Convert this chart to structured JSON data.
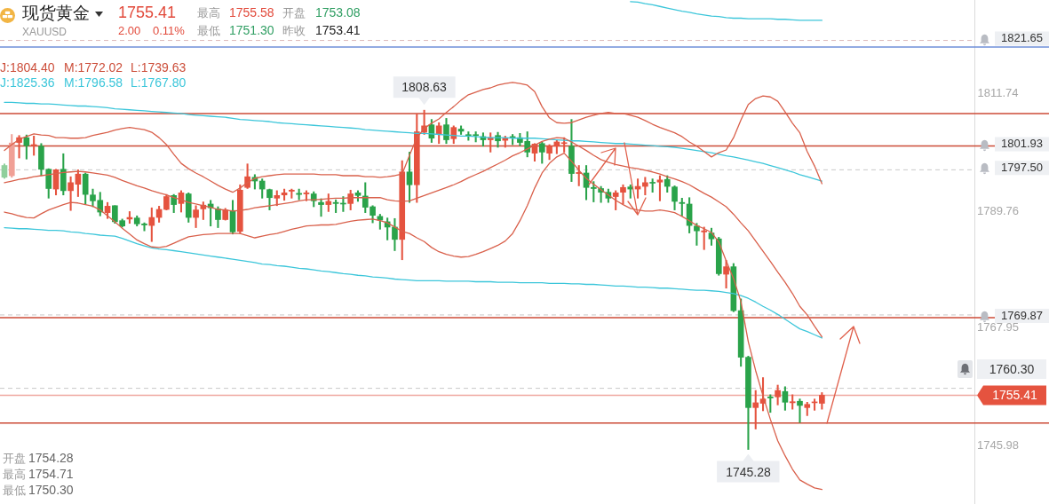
{
  "chart_data": {
    "type": "candlestick",
    "title": "现货黄金",
    "subtitle": "XAUUSD",
    "categories": [
      null,
      null,
      null,
      null,
      null,
      null,
      null,
      null,
      null,
      null,
      null,
      null,
      null,
      null,
      null,
      null,
      null,
      null,
      null,
      null,
      null,
      null,
      null,
      null,
      null,
      null,
      null,
      null,
      null,
      null,
      null,
      null,
      null,
      null,
      null,
      null,
      null,
      null,
      null,
      null,
      null,
      null,
      null,
      null,
      null,
      null,
      null,
      null,
      null,
      null,
      null,
      null,
      null,
      null,
      null,
      null,
      null,
      null,
      null,
      null,
      null,
      null,
      null,
      null,
      null,
      null,
      null,
      null,
      null,
      null,
      null,
      null,
      null,
      null,
      null,
      null,
      null,
      null,
      null,
      null,
      null,
      null,
      null,
      null,
      null,
      null,
      null,
      null,
      null,
      null,
      null,
      null,
      null,
      null,
      null,
      null,
      null,
      null,
      null,
      null,
      null,
      null,
      null,
      null,
      null,
      null,
      null,
      null,
      null,
      null,
      null,
      null
    ],
    "ohlc": [
      [
        1798.3,
        1798.6,
        1795.9,
        1796.1
      ],
      [
        1796.4,
        1804.1,
        1796.1,
        1802.5
      ],
      [
        1802.6,
        1803.9,
        1799.7,
        1803.5
      ],
      [
        1803.5,
        1804.0,
        1799.5,
        1802.0
      ],
      [
        1802.0,
        1803.8,
        1800.2,
        1802.2
      ],
      [
        1801.9,
        1802.4,
        1796.4,
        1797.6
      ],
      [
        1797.6,
        1797.7,
        1792.2,
        1794.0
      ],
      [
        1793.9,
        1797.6,
        1792.8,
        1797.5
      ],
      [
        1797.6,
        1800.5,
        1792.8,
        1793.6
      ],
      [
        1793.6,
        1796.2,
        1789.9,
        1795.1
      ],
      [
        1794.8,
        1797.5,
        1792.5,
        1796.7
      ],
      [
        1796.7,
        1796.9,
        1791.1,
        1792.9
      ],
      [
        1792.8,
        1793.9,
        1790.6,
        1791.7
      ],
      [
        1791.8,
        1793.3,
        1788.9,
        1789.6
      ],
      [
        1789.5,
        1791.4,
        1788.4,
        1790.7
      ],
      [
        1790.8,
        1790.8,
        1787.5,
        1787.8
      ],
      [
        1788.0,
        1788.3,
        1786.8,
        1787.0
      ],
      [
        1788.3,
        1789.7,
        1787.5,
        1788.6
      ],
      [
        1788.5,
        1788.9,
        1787.0,
        1787.4
      ],
      [
        1787.4,
        1787.6,
        1786.1,
        1787.2
      ],
      [
        1787.1,
        1790.4,
        1784.1,
        1788.6
      ],
      [
        1788.6,
        1790.7,
        1787.7,
        1790.1
      ],
      [
        1790.1,
        1792.9,
        1790.0,
        1792.5
      ],
      [
        1792.7,
        1792.9,
        1789.5,
        1791.0
      ],
      [
        1791.2,
        1793.6,
        1789.6,
        1793.2
      ],
      [
        1793.0,
        1793.2,
        1787.7,
        1788.6
      ],
      [
        1788.6,
        1790.8,
        1786.7,
        1790.0
      ],
      [
        1790.2,
        1791.5,
        1788.2,
        1790.9
      ],
      [
        1791.1,
        1791.8,
        1787.0,
        1790.4
      ],
      [
        1790.2,
        1790.6,
        1786.7,
        1788.2
      ],
      [
        1788.2,
        1790.3,
        1788.1,
        1790.0
      ],
      [
        1789.9,
        1791.8,
        1785.5,
        1785.9
      ],
      [
        1786.0,
        1794.7,
        1785.6,
        1793.7
      ],
      [
        1794.2,
        1798.6,
        1794.0,
        1796.2
      ],
      [
        1796.1,
        1796.6,
        1793.9,
        1795.4
      ],
      [
        1795.4,
        1795.8,
        1792.2,
        1793.9
      ],
      [
        1793.8,
        1793.9,
        1790.0,
        1792.3
      ],
      [
        1792.2,
        1793.6,
        1790.8,
        1792.7
      ],
      [
        1792.8,
        1793.9,
        1791.8,
        1793.2
      ],
      [
        1793.5,
        1793.9,
        1792.2,
        1793.7
      ],
      [
        1793.1,
        1793.9,
        1791.9,
        1792.9
      ],
      [
        1793.0,
        1793.6,
        1791.7,
        1793.2
      ],
      [
        1793.0,
        1793.4,
        1790.6,
        1791.7
      ],
      [
        1791.4,
        1792.1,
        1788.8,
        1791.0
      ],
      [
        1791.0,
        1793.0,
        1789.7,
        1791.6
      ],
      [
        1791.4,
        1791.9,
        1789.5,
        1791.2
      ],
      [
        1791.2,
        1792.5,
        1789.7,
        1791.1
      ],
      [
        1791.2,
        1793.7,
        1790.0,
        1793.0
      ],
      [
        1793.2,
        1793.6,
        1791.6,
        1792.7
      ],
      [
        1792.6,
        1795.1,
        1789.5,
        1790.5
      ],
      [
        1790.6,
        1790.8,
        1787.6,
        1789.0
      ],
      [
        1788.8,
        1789.2,
        1786.4,
        1788.1
      ],
      [
        1787.8,
        1788.5,
        1784.4,
        1786.8
      ],
      [
        1786.8,
        1788.4,
        1782.4,
        1784.5
      ],
      [
        1784.5,
        1799.2,
        1780.7,
        1797.1
      ],
      [
        1797.1,
        1800.8,
        1791.4,
        1794.7
      ],
      [
        1794.7,
        1807.9,
        1791.4,
        1804.6
      ],
      [
        1804.5,
        1808.63,
        1804.1,
        1805.7
      ],
      [
        1805.9,
        1806.9,
        1802.6,
        1803.4
      ],
      [
        1804.1,
        1806.3,
        1802.4,
        1805.7
      ],
      [
        1805.9,
        1807.1,
        1802.4,
        1803.1
      ],
      [
        1803.3,
        1805.7,
        1802.4,
        1805.4
      ],
      [
        1805.1,
        1805.7,
        1804.1,
        1804.7
      ],
      [
        1804.0,
        1804.6,
        1803.0,
        1803.9
      ],
      [
        1804.0,
        1804.6,
        1802.7,
        1803.9
      ],
      [
        1803.7,
        1804.4,
        1801.9,
        1803.1
      ],
      [
        1803.1,
        1804.4,
        1800.8,
        1803.5
      ],
      [
        1803.9,
        1804.5,
        1801.7,
        1802.9
      ],
      [
        1803.0,
        1803.8,
        1801.7,
        1803.4
      ],
      [
        1803.7,
        1804.1,
        1802.2,
        1803.5
      ],
      [
        1803.5,
        1804.3,
        1802.0,
        1802.6
      ],
      [
        1802.8,
        1804.6,
        1799.9,
        1800.8
      ],
      [
        1800.6,
        1802.4,
        1799.1,
        1802.3
      ],
      [
        1802.4,
        1802.7,
        1798.7,
        1800.8
      ],
      [
        1800.6,
        1802.2,
        1799.4,
        1801.9
      ],
      [
        1801.9,
        1803.1,
        1800.5,
        1802.7
      ],
      [
        1802.4,
        1803.5,
        1800.8,
        1802.5
      ],
      [
        1801.9,
        1806.9,
        1795.3,
        1796.8
      ],
      [
        1796.8,
        1798.3,
        1794.5,
        1797.0
      ],
      [
        1796.9,
        1798.3,
        1791.9,
        1794.2
      ],
      [
        1794.2,
        1795.3,
        1791.5,
        1794.0
      ],
      [
        1794.0,
        1794.4,
        1791.4,
        1793.3
      ],
      [
        1793.3,
        1793.9,
        1791.4,
        1792.2
      ],
      [
        1792.5,
        1793.6,
        1790.0,
        1793.2
      ],
      [
        1793.3,
        1794.7,
        1791.1,
        1794.2
      ],
      [
        1794.3,
        1794.7,
        1792.2,
        1793.9
      ],
      [
        1793.9,
        1795.8,
        1792.2,
        1794.4
      ],
      [
        1794.4,
        1796.1,
        1792.8,
        1795.1
      ],
      [
        1795.1,
        1795.8,
        1793.3,
        1795.0
      ],
      [
        1795.2,
        1796.4,
        1791.7,
        1795.6
      ],
      [
        1795.7,
        1796.4,
        1793.3,
        1794.4
      ],
      [
        1794.3,
        1794.5,
        1790.0,
        1791.6
      ],
      [
        1791.4,
        1792.2,
        1788.9,
        1791.2
      ],
      [
        1791.1,
        1792.3,
        1785.7,
        1787.1
      ],
      [
        1787.0,
        1787.5,
        1783.4,
        1786.1
      ],
      [
        1785.9,
        1786.8,
        1782.6,
        1786.1
      ],
      [
        1785.7,
        1786.6,
        1783.4,
        1784.6
      ],
      [
        1784.6,
        1784.9,
        1777.8,
        1778.1
      ],
      [
        1778.0,
        1780.6,
        1775.4,
        1779.4
      ],
      [
        1779.4,
        1780.0,
        1771.0,
        1771.2
      ],
      [
        1771.2,
        1773.4,
        1760.8,
        1762.5
      ],
      [
        1762.5,
        1762.7,
        1745.28,
        1753.1
      ],
      [
        1753.1,
        1756.3,
        1749.1,
        1754.0
      ],
      [
        1753.9,
        1758.7,
        1752.5,
        1754.7
      ],
      [
        1755.1,
        1755.5,
        1752.2,
        1754.9
      ],
      [
        1755.1,
        1757.3,
        1753.6,
        1756.3
      ],
      [
        1756.1,
        1757.0,
        1752.6,
        1754.1
      ],
      [
        1754.0,
        1755.5,
        1752.8,
        1754.2
      ],
      [
        1754.28,
        1754.71,
        1750.3,
        1753.5
      ],
      [
        1753.1,
        1754.1,
        1751.6,
        1753.7
      ],
      [
        1754.0,
        1754.7,
        1752.6,
        1754.1
      ],
      [
        1753.9,
        1755.9,
        1752.8,
        1755.41
      ]
    ],
    "colors": [
      "#8fcf9c",
      "#f0a096",
      "#e5533f",
      "#2aa34a",
      "#e5533f",
      "#2aa34a",
      "#2aa34a",
      "#e5533f",
      "#2aa34a",
      "#e5533f",
      "#e5533f",
      "#2aa34a",
      "#2aa34a",
      "#2aa34a",
      "#e5533f",
      "#2aa34a",
      "#2aa34a",
      "#e5533f",
      "#2aa34a",
      "#2aa34a",
      "#e5533f",
      "#e5533f",
      "#e5533f",
      "#2aa34a",
      "#e5533f",
      "#2aa34a",
      "#e5533f",
      "#e5533f",
      "#2aa34a",
      "#2aa34a",
      "#e5533f",
      "#2aa34a",
      "#e5533f",
      "#e5533f",
      "#2aa34a",
      "#2aa34a",
      "#2aa34a",
      "#e5533f",
      "#e5533f",
      "#e5533f",
      "#2aa34a",
      "#e5533f",
      "#2aa34a",
      "#2aa34a",
      "#e5533f",
      "#2aa34a",
      "#2aa34a",
      "#e5533f",
      "#2aa34a",
      "#2aa34a",
      "#2aa34a",
      "#2aa34a",
      "#2aa34a",
      "#2aa34a",
      "#e5533f",
      "#2aa34a",
      "#e5533f",
      "#e5533f",
      "#2aa34a",
      "#e5533f",
      "#2aa34a",
      "#e5533f",
      "#2aa34a",
      "#2aa34a",
      "#2aa34a",
      "#2aa34a",
      "#e5533f",
      "#2aa34a",
      "#e5533f",
      "#2aa34a",
      "#2aa34a",
      "#2aa34a",
      "#e5533f",
      "#2aa34a",
      "#e5533f",
      "#e5533f",
      "#e5533f",
      "#2aa34a",
      "#e5533f",
      "#2aa34a",
      "#2aa34a",
      "#2aa34a",
      "#2aa34a",
      "#e5533f",
      "#e5533f",
      "#2aa34a",
      "#e5533f",
      "#e5533f",
      "#2aa34a",
      "#e5533f",
      "#2aa34a",
      "#2aa34a",
      "#2aa34a",
      "#2aa34a",
      "#2aa34a",
      "#e5533f",
      "#2aa34a",
      "#2aa34a",
      "#e5533f",
      "#2aa34a",
      "#2aa34a",
      "#2aa34a",
      "#e5533f",
      "#e5533f",
      "#2aa34a",
      "#e5533f",
      "#2aa34a",
      "#e5533f",
      "#2aa34a",
      "#e5533f",
      "#e5533f",
      "#e5533f"
    ],
    "series": [
      {
        "type": "line",
        "color": "#d9604b",
        "values": [
          1801.1,
          1802.2,
          1803.2,
          1803.7,
          1804.2,
          1804.0,
          1803.9,
          1803.5,
          1803.5,
          1803.4,
          1803.4,
          1803.5,
          1803.9,
          1804.2,
          1804.5,
          1804.9,
          1805.2,
          1805.4,
          1805.2,
          1805.0,
          1804.5,
          1803.5,
          1802.2,
          1800.4,
          1798.7,
          1797.7,
          1796.9,
          1796.2,
          1795.4,
          1794.6,
          1793.9,
          1793.3,
          1794.1,
          1795.1,
          1795.9,
          1796.2,
          1796.4,
          1796.6,
          1796.7,
          1796.7,
          1796.7,
          1796.7,
          1796.7,
          1796.6,
          1796.6,
          1796.6,
          1796.4,
          1796.4,
          1796.4,
          1796.2,
          1796.2,
          1796.1,
          1796.2,
          1796.4,
          1796.7,
          1800.2,
          1803.5,
          1805.2,
          1806.2,
          1807.0,
          1808.2,
          1809.3,
          1810.5,
          1811.5,
          1812.0,
          1812.5,
          1812.8,
          1813.3,
          1813.6,
          1813.8,
          1813.6,
          1813.3,
          1812.1,
          1809.3,
          1807.2,
          1806.3,
          1806.2,
          1806.3,
          1806.8,
          1807.3,
          1807.7,
          1808.0,
          1808.2,
          1808.0,
          1808.0,
          1807.7,
          1807.3,
          1806.7,
          1806.0,
          1805.4,
          1804.9,
          1804.4,
          1803.7,
          1802.7,
          1801.9,
          1800.9,
          1799.9,
          1800.7,
          1801.2,
          1803.5,
          1806.8,
          1809.7,
          1810.8,
          1811.3,
          1811.1,
          1810.3,
          1808.3,
          1806.2,
          1804.4,
          1800.9,
          1798.2,
          1794.9
        ]
      },
      {
        "type": "line",
        "color": "#d9604b",
        "values": [
          1795.1,
          1795.4,
          1795.7,
          1795.9,
          1796.2,
          1796.4,
          1796.6,
          1796.8,
          1797.0,
          1797.1,
          1797.2,
          1797.1,
          1796.9,
          1796.7,
          1796.5,
          1796.1,
          1795.5,
          1795.0,
          1794.5,
          1794.1,
          1793.6,
          1793.2,
          1792.8,
          1792.3,
          1791.9,
          1791.4,
          1791.1,
          1790.8,
          1790.5,
          1790.1,
          1790.0,
          1789.8,
          1789.9,
          1790.1,
          1790.4,
          1790.6,
          1790.8,
          1791.0,
          1791.2,
          1791.4,
          1791.7,
          1791.9,
          1791.9,
          1792.0,
          1792.1,
          1792.2,
          1792.2,
          1792.3,
          1792.3,
          1792.3,
          1792.3,
          1792.3,
          1791.9,
          1791.7,
          1791.6,
          1791.7,
          1792.2,
          1792.7,
          1793.2,
          1793.7,
          1794.2,
          1794.7,
          1795.3,
          1796.0,
          1796.6,
          1797.2,
          1797.9,
          1798.6,
          1799.3,
          1800.1,
          1800.7,
          1801.4,
          1802.1,
          1802.8,
          1803.2,
          1803.5,
          1803.4,
          1802.7,
          1801.9,
          1801.1,
          1800.2,
          1799.4,
          1798.9,
          1798.5,
          1798.2,
          1797.9,
          1797.7,
          1797.4,
          1797.1,
          1796.7,
          1796.2,
          1795.8,
          1795.3,
          1794.7,
          1793.9,
          1793.1,
          1792.4,
          1791.5,
          1790.6,
          1789.2,
          1787.6,
          1786.1,
          1784.2,
          1782.3,
          1780.4,
          1778.4,
          1776.5,
          1774.4,
          1772.0,
          1770.4,
          1768.3,
          1766.3
        ]
      },
      {
        "type": "line",
        "color": "#d9604b",
        "values": [
          1789.6,
          1789.3,
          1788.9,
          1788.6,
          1788.5,
          1789.3,
          1790.0,
          1790.5,
          1791.0,
          1791.4,
          1791.3,
          1791.0,
          1790.7,
          1790.0,
          1788.9,
          1787.8,
          1786.6,
          1785.5,
          1784.4,
          1783.7,
          1783.1,
          1783.0,
          1783.2,
          1783.8,
          1784.4,
          1785.0,
          1785.2,
          1785.4,
          1785.5,
          1785.6,
          1785.6,
          1785.6,
          1785.6,
          1785.2,
          1784.8,
          1785.1,
          1785.4,
          1785.6,
          1786.0,
          1786.4,
          1786.7,
          1787.0,
          1787.1,
          1787.2,
          1787.2,
          1787.3,
          1787.6,
          1787.9,
          1788.1,
          1788.2,
          1788.3,
          1788.0,
          1787.6,
          1786.8,
          1786.0,
          1785.6,
          1784.8,
          1784.1,
          1783.0,
          1782.2,
          1781.7,
          1781.4,
          1781.2,
          1781.3,
          1781.7,
          1782.2,
          1782.8,
          1783.4,
          1784.2,
          1785.6,
          1788.0,
          1790.8,
          1794.1,
          1796.9,
          1798.7,
          1799.9,
          1800.6,
          1799.1,
          1797.4,
          1795.9,
          1794.8,
          1793.8,
          1792.8,
          1791.8,
          1791.0,
          1790.3,
          1790.0,
          1789.8,
          1789.8,
          1790.0,
          1789.8,
          1789.5,
          1788.8,
          1788.0,
          1787.1,
          1786.5,
          1785.8,
          1784.0,
          1780.5,
          1777.2,
          1772.9,
          1765.4,
          1760.0,
          1755.3,
          1750.9,
          1746.9,
          1744.1,
          1741.6,
          1739.6,
          1738.8,
          1738.1,
          1737.8
        ]
      },
      {
        "type": "line",
        "color": "#3cc6da",
        "values": [
          null,
          null,
          null,
          null,
          null,
          null,
          null,
          null,
          null,
          null,
          null,
          null,
          null,
          null,
          null,
          null,
          null,
          null,
          null,
          null,
          null,
          null,
          null,
          null,
          null,
          null,
          null,
          null,
          null,
          null,
          null,
          null,
          null,
          null,
          null,
          null,
          null,
          null,
          null,
          null,
          null,
          null,
          null,
          null,
          null,
          null,
          null,
          null,
          null,
          null,
          null,
          null,
          null,
          null,
          null,
          null,
          null,
          null,
          null,
          null,
          null,
          null,
          null,
          null,
          null,
          null,
          null,
          null,
          null,
          null,
          null,
          null,
          null,
          null,
          null,
          null,
          null,
          null,
          null,
          null,
          null,
          null,
          null,
          null,
          null,
          1828.9,
          1828.8,
          1828.5,
          1828.3,
          1828.0,
          1827.7,
          1827.4,
          1827.1,
          1826.9,
          1826.6,
          1826.4,
          1826.2,
          1826.1,
          1825.9,
          1825.8,
          1825.8,
          1825.7,
          1825.7,
          1825.7,
          1825.7,
          1825.6,
          1825.6,
          1825.5,
          1825.4,
          1825.4,
          1825.4,
          1825.4
        ]
      },
      {
        "type": "line",
        "color": "#3cc6da",
        "values": [
          1810.1,
          1810.1,
          1810.0,
          1809.9,
          1809.9,
          1809.8,
          1809.8,
          1809.7,
          1809.6,
          1809.5,
          1809.4,
          1809.4,
          1809.3,
          1809.2,
          1809.1,
          1808.9,
          1808.8,
          1808.7,
          1808.6,
          1808.5,
          1808.4,
          1808.3,
          1808.2,
          1808.1,
          1808.0,
          1807.8,
          1807.7,
          1807.6,
          1807.5,
          1807.4,
          1807.3,
          1807.1,
          1806.9,
          1806.8,
          1806.7,
          1806.6,
          1806.5,
          1806.3,
          1806.2,
          1806.1,
          1806.0,
          1805.9,
          1805.8,
          1805.7,
          1805.6,
          1805.5,
          1805.4,
          1805.3,
          1805.2,
          1805.0,
          1804.9,
          1804.8,
          1804.7,
          1804.6,
          1804.5,
          1804.4,
          1804.3,
          1804.3,
          1804.2,
          1804.1,
          1804.0,
          1803.9,
          1803.8,
          1803.8,
          1803.7,
          1803.6,
          1803.5,
          1803.5,
          1803.5,
          1803.4,
          1803.4,
          1803.4,
          1803.4,
          1803.3,
          1803.2,
          1803.1,
          1803.0,
          1802.9,
          1802.9,
          1802.8,
          1802.7,
          1802.6,
          1802.5,
          1802.4,
          1802.4,
          1802.3,
          1802.2,
          1802.1,
          1802.0,
          1801.9,
          1801.8,
          1801.7,
          1801.5,
          1801.3,
          1801.1,
          1800.9,
          1800.7,
          1800.4,
          1800.1,
          1799.9,
          1799.6,
          1799.3,
          1799.0,
          1798.7,
          1798.3,
          1797.9,
          1797.5,
          1797.1,
          1796.6,
          1796.2,
          1795.8,
          1795.4
        ]
      },
      {
        "type": "line",
        "color": "#3cc6da",
        "values": [
          1786.7,
          1786.6,
          1786.5,
          1786.5,
          1786.4,
          1786.3,
          1786.2,
          1786.2,
          1786.1,
          1785.9,
          1785.8,
          1785.6,
          1785.5,
          1785.3,
          1785.2,
          1785.1,
          1784.7,
          1784.2,
          1783.7,
          1783.3,
          1782.9,
          1782.7,
          1782.6,
          1782.4,
          1782.2,
          1782.0,
          1781.8,
          1781.6,
          1781.4,
          1781.2,
          1781.0,
          1780.8,
          1780.6,
          1780.4,
          1780.2,
          1779.9,
          1779.8,
          1779.6,
          1779.5,
          1779.3,
          1779.1,
          1779.0,
          1778.8,
          1778.6,
          1778.5,
          1778.3,
          1778.1,
          1778.0,
          1777.8,
          1777.7,
          1777.5,
          1777.4,
          1777.3,
          1777.1,
          1777.0,
          1776.9,
          1776.8,
          1776.8,
          1776.8,
          1776.8,
          1776.7,
          1776.7,
          1776.7,
          1776.7,
          1776.6,
          1776.6,
          1776.6,
          1776.5,
          1776.5,
          1776.5,
          1776.4,
          1776.4,
          1776.4,
          1776.4,
          1776.3,
          1776.3,
          1776.3,
          1776.2,
          1776.2,
          1776.1,
          1776.1,
          1776.0,
          1775.9,
          1775.8,
          1775.8,
          1775.7,
          1775.6,
          1775.6,
          1775.5,
          1775.4,
          1775.4,
          1775.3,
          1775.2,
          1775.1,
          1775.0,
          1775.0,
          1774.9,
          1774.8,
          1774.6,
          1774.4,
          1774.0,
          1773.5,
          1772.8,
          1772.0,
          1771.3,
          1770.5,
          1769.6,
          1768.7,
          1767.8,
          1767.3,
          1766.7,
          1766.1
        ]
      }
    ],
    "ylim": [
      1735.1,
      1829.2
    ],
    "yticks": [
      1811.74,
      1789.76,
      1767.95,
      1745.98
    ],
    "tick_labels": "y",
    "marker": "none",
    "ref_lines": [
      {
        "axis": "y",
        "value": 1821.65,
        "label": "1821.65",
        "color": "#dcb8b8",
        "line_style": "dashed"
      },
      {
        "axis": "y",
        "value": 1820.4,
        "color": "#6f8fd8"
      },
      {
        "axis": "y",
        "value": 1808.0,
        "color": "#cc4b37"
      },
      {
        "axis": "y",
        "value": 1801.93,
        "label": "1801.93",
        "color": "#cc4b37"
      },
      {
        "axis": "y",
        "value": 1797.5,
        "label": "1797.50",
        "color": "#c8c8c8",
        "line_style": "dashed"
      },
      {
        "axis": "y",
        "value": 1770.4,
        "color": "#c8c8c8",
        "line_style": "dashed"
      },
      {
        "axis": "y",
        "value": 1769.87,
        "label": "1769.87",
        "color": "#cc4b37"
      },
      {
        "axis": "y",
        "value": 1756.7,
        "color": "#c8c8c8",
        "line_style": "dashed"
      },
      {
        "axis": "y",
        "value": 1755.41,
        "label": "1755.41",
        "color": "#f0a8a0"
      },
      {
        "axis": "y",
        "value": 1750.2,
        "color": "#cc4b37"
      }
    ],
    "annotations": [
      "1755.41",
      "2.00",
      "0.11%",
      "最高 1755.58",
      "开盘 1753.08",
      "最低 1751.30",
      "昨收 1753.41",
      "J:1804.40",
      "M:1772.02",
      "L:1739.63",
      "J:1825.36",
      "M:1796.58",
      "L:1767.80",
      "1760.30",
      "开盘 1754.28",
      "最高 1754.71",
      "最低 1750.30",
      {
        "text": "1808.63",
        "y": 1808.63
      },
      {
        "text": "1745.28",
        "y": 1745.28
      }
    ]
  }
}
